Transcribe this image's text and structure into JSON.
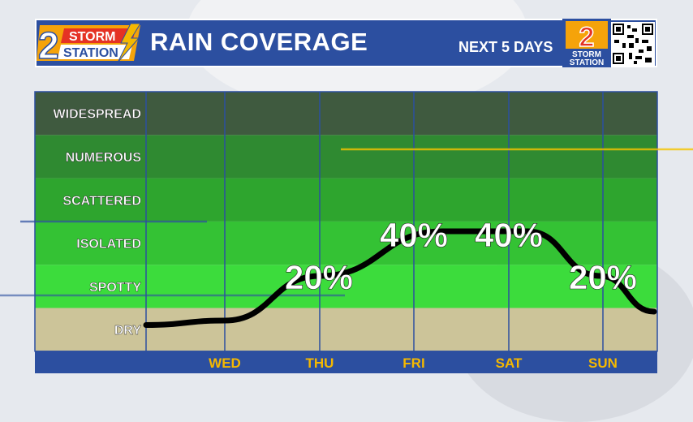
{
  "header": {
    "logo_top": "STORM",
    "logo_bottom": "STATION",
    "logo_number": "2",
    "title": "RAIN COVERAGE",
    "subtitle": "NEXT 5 DAYS",
    "logo2_number": "2",
    "logo2_top": "STORM",
    "logo2_bottom": "STATION"
  },
  "colors": {
    "header_bg": "#2c4fa0",
    "axis_bar": "#2c4fa0",
    "day_label": "#f5b800",
    "curve": "#000000",
    "dry": "#ccc499",
    "spotty": "#3cdc3c",
    "isolated": "#34c234",
    "scattered": "#2ea52e",
    "numerous": "#2f8a31",
    "widespread": "#3f5a3f"
  },
  "chart_data": {
    "type": "line",
    "title": "RAIN COVERAGE",
    "y_categories": [
      "DRY",
      "SPOTTY",
      "ISOLATED",
      "SCATTERED",
      "NUMEROUS",
      "WIDESPREAD"
    ],
    "categories": [
      "WED",
      "THU",
      "FRI",
      "SAT",
      "SUN"
    ],
    "data_labels": [
      "",
      "20%",
      "40%",
      "40%",
      "20%"
    ],
    "values": [
      0,
      20,
      40,
      40,
      20
    ],
    "grid": true,
    "legend": "none"
  }
}
